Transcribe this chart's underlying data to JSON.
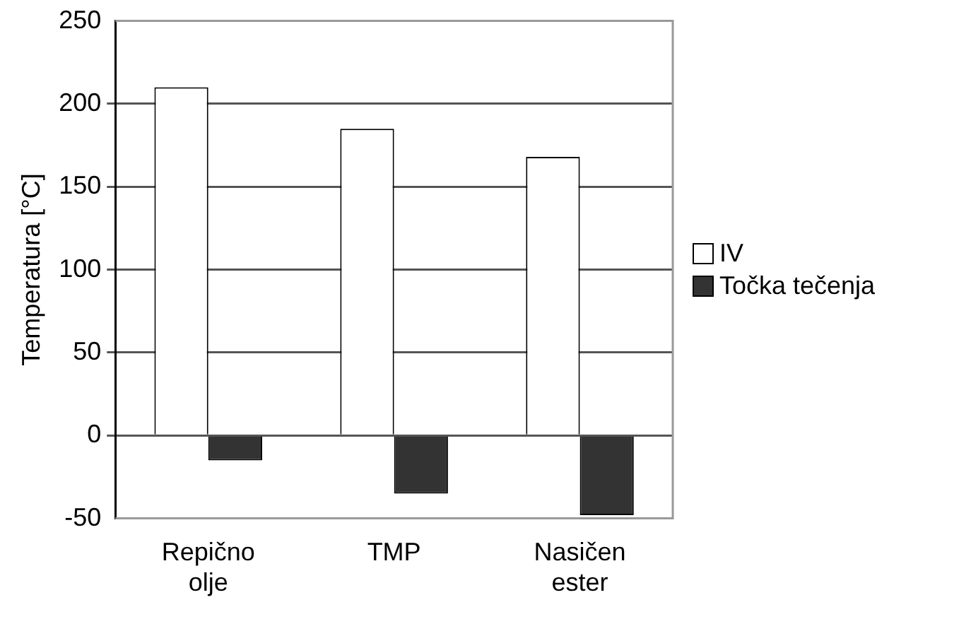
{
  "chart_data": {
    "type": "bar",
    "ylabel": "Temperatura [°C]",
    "categories": [
      "Repično olje",
      "TMP",
      "Nasičen ester"
    ],
    "series": [
      {
        "name": "IV",
        "color": "#ffffff",
        "values": [
          210,
          185,
          168
        ]
      },
      {
        "name": "Točka tečenja",
        "color": "#333333",
        "values": [
          -15,
          -35,
          -48
        ]
      }
    ],
    "ylim": [
      -50,
      250
    ],
    "yticks": [
      -50,
      0,
      50,
      100,
      150,
      200,
      250
    ],
    "grid": "y",
    "legend": "right"
  }
}
